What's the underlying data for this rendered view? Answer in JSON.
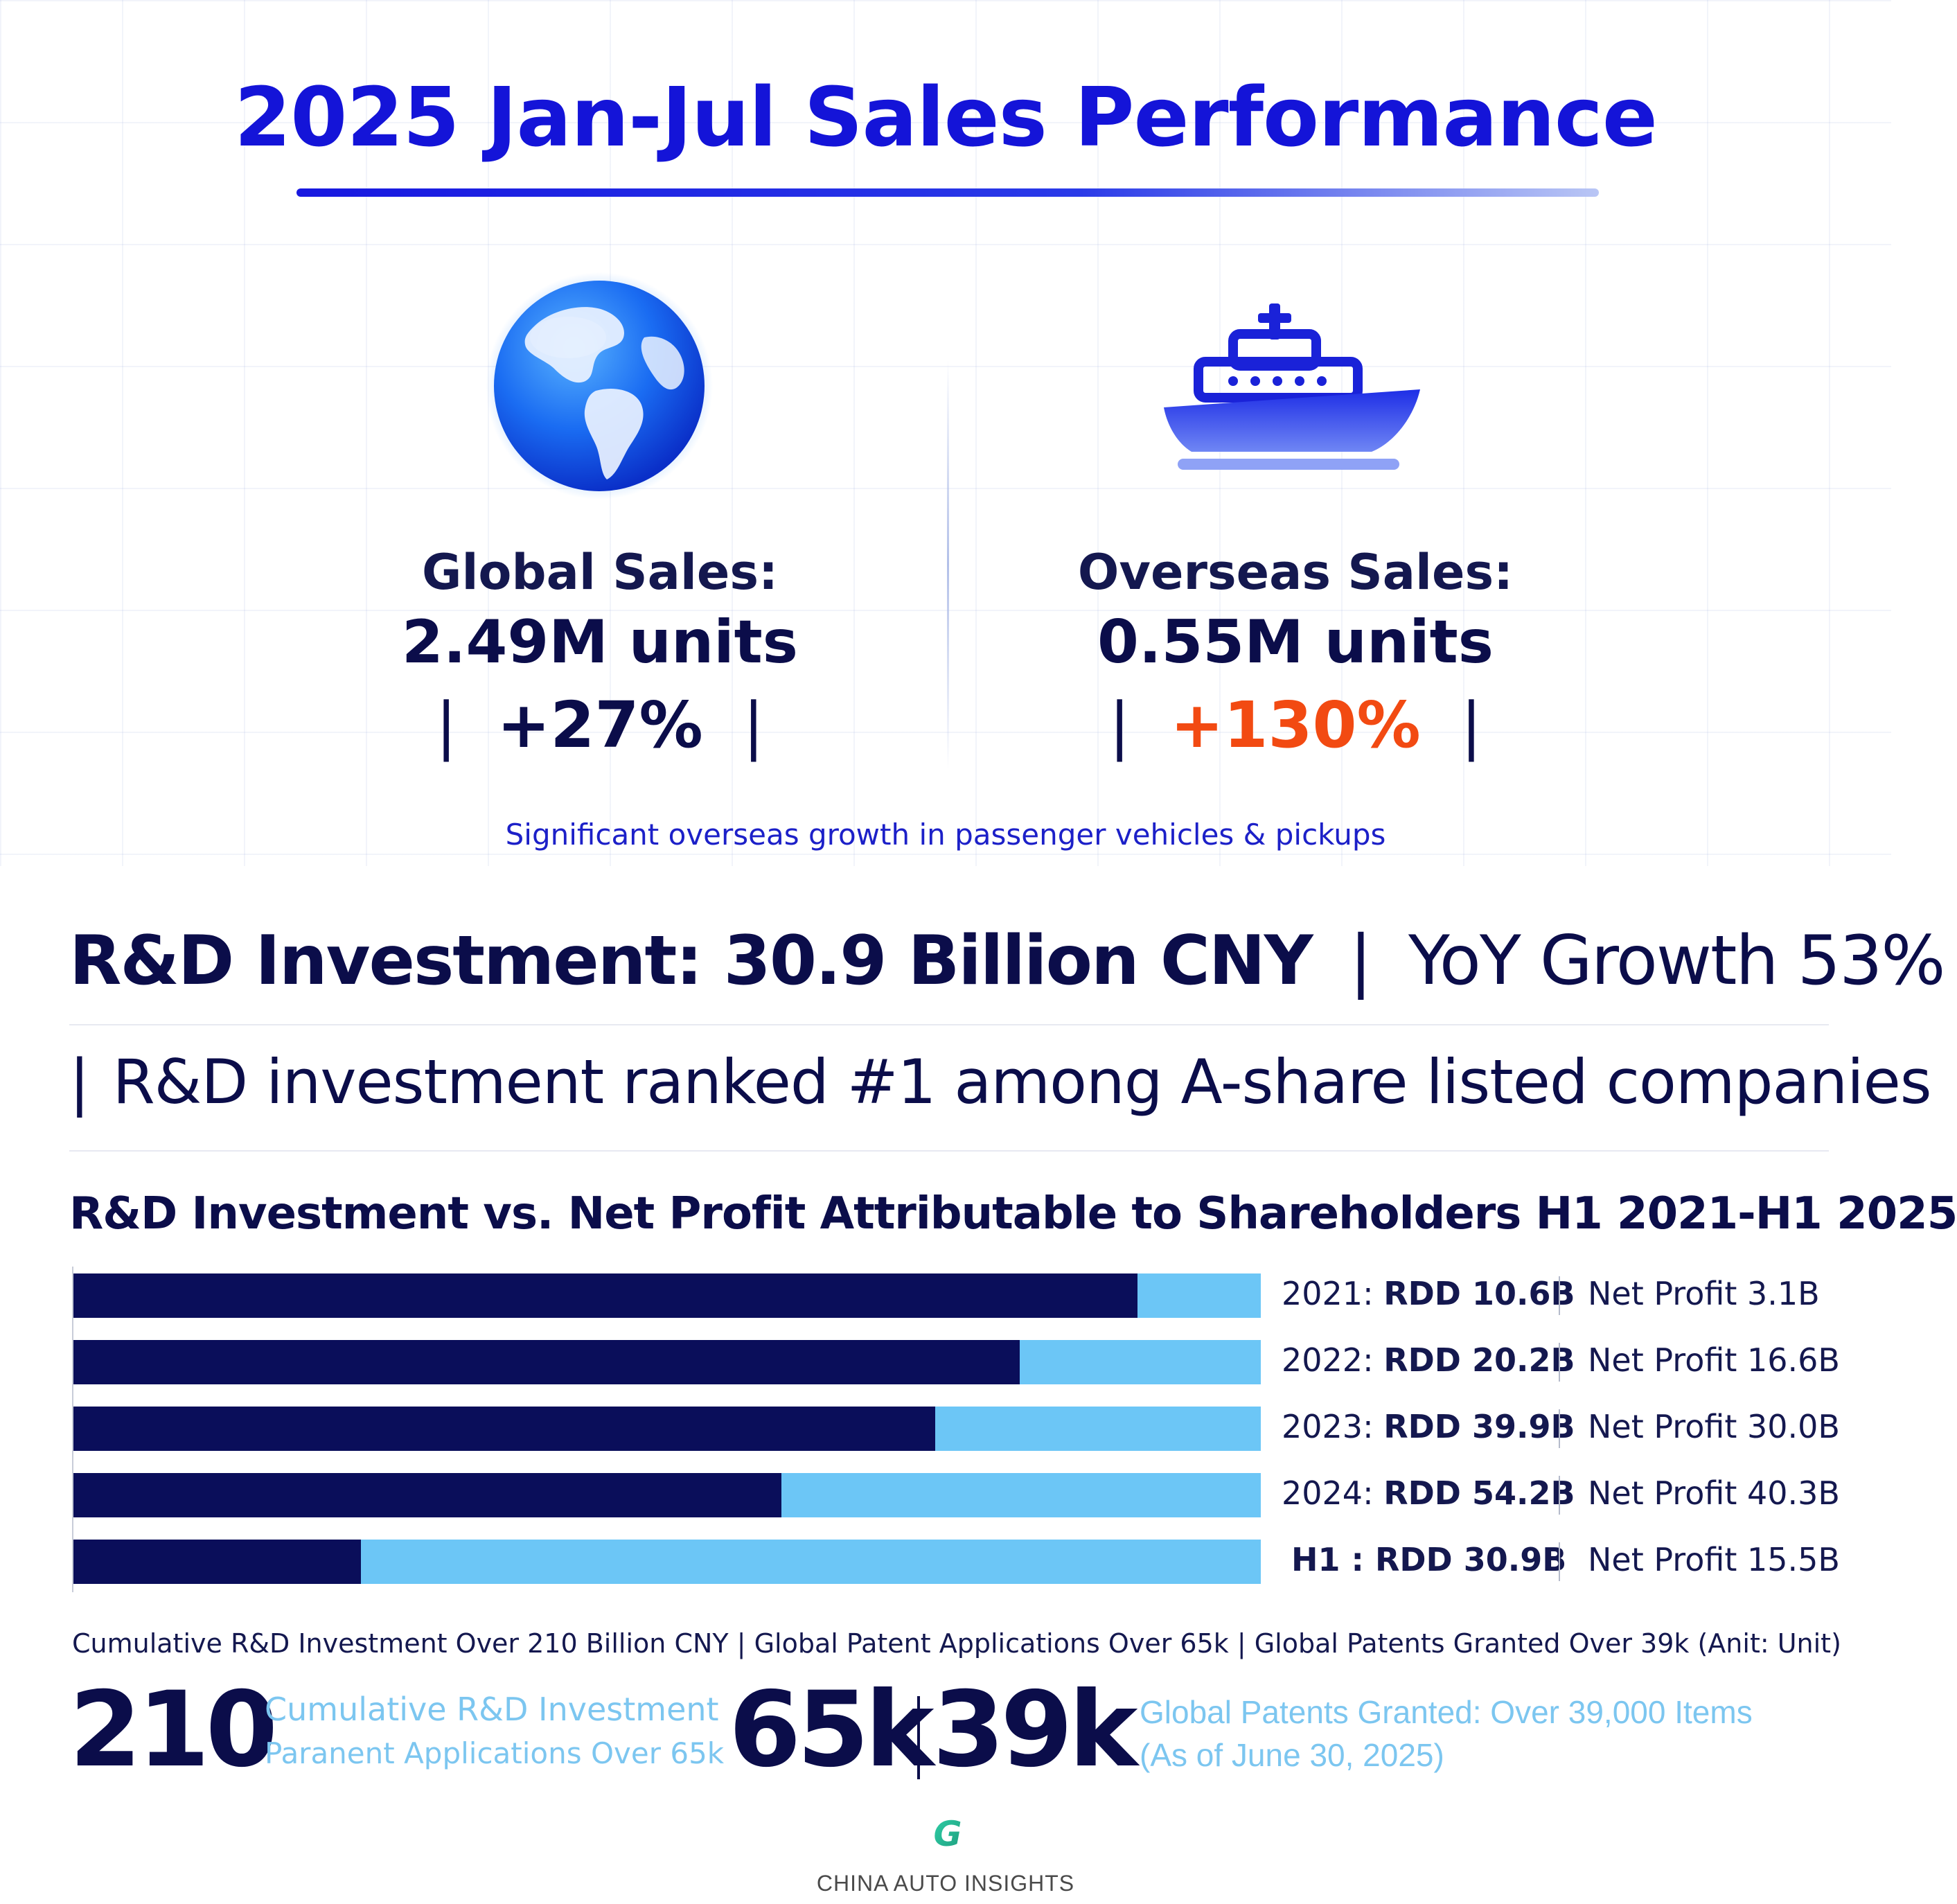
{
  "header": {
    "title": "2025 Jan-Jul Sales Performance"
  },
  "kpis": [
    {
      "icon": "globe-icon",
      "label": "Global Sales:",
      "value": "2.49M units",
      "growth": "+27%",
      "growth_color": "#0b0d4a"
    },
    {
      "icon": "ship-icon",
      "label": "Overseas Sales:",
      "value": "0.55M units",
      "growth": "+130%",
      "growth_color": "#f24a12"
    }
  ],
  "note": "Significant overseas growth in passenger vehicles & pickups",
  "rd": {
    "headline": "R&D Investment: 30.9 Billion CNY",
    "yoy": "YoY Growth 53%",
    "rank": "R&D investment ranked #1 among A-share listed companies",
    "separator": "|"
  },
  "chart_data": {
    "type": "bar",
    "orientation": "horizontal",
    "title": "R&D Investment vs. Net Profit Attributable to Shareholders H1 2021-H1 2025",
    "colors": {
      "dark": "#0a0e5a",
      "light": "#6cc6f6"
    },
    "categories": [
      "2021:",
      "2022:",
      "2023:",
      "2024:",
      "H1"
    ],
    "series": [
      {
        "label_prefix": "RDD",
        "values": [
          "10.6B",
          "20.2B",
          "39.9B",
          "54.2B",
          "30.9B"
        ]
      },
      {
        "label_prefix": "Net Profit",
        "values": [
          "3.1B",
          "16.6B",
          "30.0B",
          "40.3B",
          "15.5B"
        ]
      }
    ],
    "dark_fill_fraction": [
      0.896,
      0.797,
      0.726,
      0.596,
      0.242
    ]
  },
  "summary_line": "Cumulative R&D Investment Over 210 Billion CNY | Global Patent Applications Over 65k | Global Patents Granted Over 39k (Anit: Unit)",
  "stats": {
    "n210": "210",
    "desc1_line1": "Cumulative R&D Investment",
    "desc1_line2": "Paranent Applications Over 65k",
    "n65k": "65k",
    "n39k": "39k",
    "desc2_line1": "Global Patents Granted: Over 39,000 Items",
    "desc2_line2": "(As of June 30, 2025)"
  },
  "brand": {
    "logo_letter": "G",
    "name": "CHINA AUTO INSIGHTS"
  }
}
